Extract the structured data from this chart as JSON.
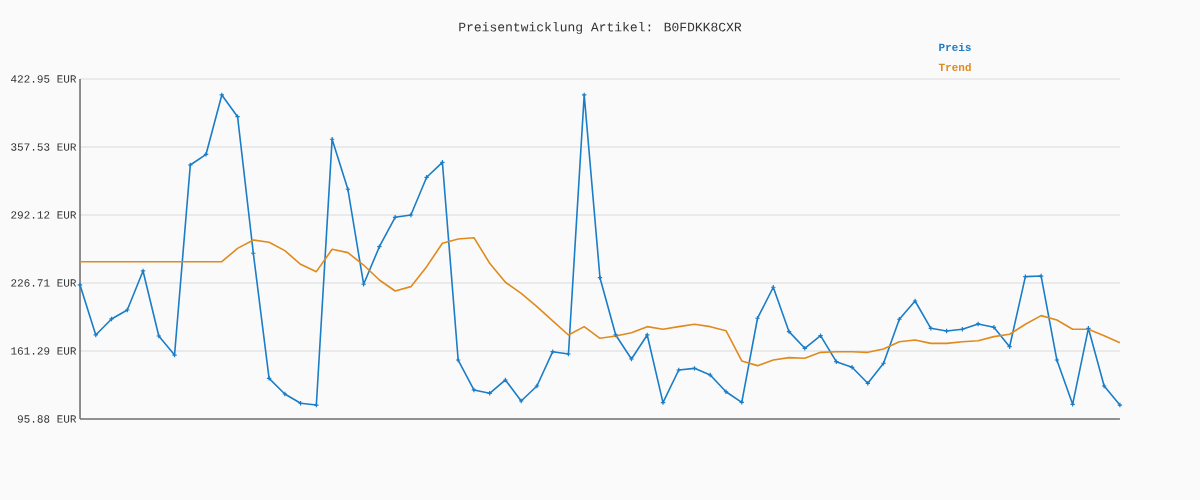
{
  "chart_data": {
    "type": "line",
    "title": "Preisentwicklung Artikel: B0FDKK8CXR",
    "categories": [
      null,
      null,
      null,
      null,
      null,
      null,
      null,
      null,
      null,
      null,
      null,
      null,
      null,
      null,
      null,
      null,
      null,
      null,
      null,
      null,
      null,
      null,
      null,
      null,
      null,
      null,
      null,
      null,
      null,
      null,
      null,
      null,
      null,
      null,
      null,
      null,
      null,
      null,
      null,
      null,
      null,
      null,
      null,
      null,
      null,
      null,
      null,
      null,
      null,
      null,
      null,
      null,
      null,
      null,
      null,
      null,
      null,
      null,
      null,
      null,
      null,
      null,
      null,
      null,
      null,
      null,
      null
    ],
    "series": [
      {
        "name": "Preis",
        "color": "#1a7dc8",
        "marker": "cross",
        "values": [
          224.8,
          176.7,
          192.1,
          200.7,
          238.3,
          175.7,
          157.4,
          340.2,
          350.5,
          407.6,
          386.7,
          255.3,
          135.0,
          119.9,
          111.0,
          109.3,
          365.0,
          316.9,
          225.5,
          261.6,
          289.9,
          292.1,
          328.4,
          342.8,
          152.6,
          123.8,
          120.6,
          133.4,
          113.2,
          127.6,
          160.6,
          158.4,
          407.6,
          231.8,
          176.7,
          153.6,
          176.7,
          111.6,
          143.0,
          144.6,
          138.2,
          122.1,
          111.9,
          192.8,
          222.6,
          179.9,
          163.9,
          176.0,
          151.0,
          145.6,
          130.2,
          149.5,
          191.8,
          209.4,
          183.1,
          180.5,
          182.2,
          187.3,
          184.1,
          165.4,
          232.8,
          233.4,
          152.6,
          110.0,
          183.1,
          127.6,
          109.3
        ]
      },
      {
        "name": "Trend",
        "color": "#e08a1e",
        "marker": "none",
        "values": [
          247.2,
          247.2,
          247.2,
          247.2,
          247.2,
          247.2,
          247.2,
          247.2,
          247.2,
          247.2,
          260.0,
          268.0,
          265.9,
          257.8,
          244.7,
          237.6,
          259.1,
          255.9,
          244.0,
          229.6,
          219.0,
          223.2,
          242.4,
          264.9,
          269.0,
          270.3,
          245.7,
          227.4,
          216.8,
          203.9,
          190.2,
          176.7,
          184.7,
          173.5,
          175.7,
          178.9,
          184.7,
          182.2,
          184.7,
          187.0,
          184.7,
          180.8,
          151.7,
          147.2,
          152.6,
          154.9,
          154.3,
          160.0,
          160.6,
          160.6,
          160.0,
          163.2,
          170.2,
          171.9,
          168.6,
          168.6,
          170.2,
          171.2,
          175.1,
          177.4,
          187.0,
          195.3,
          191.1,
          182.2,
          182.2,
          176.0,
          169.3
        ]
      }
    ],
    "ylim": [
      95.88,
      422.95
    ],
    "yticks": [
      {
        "value": 95.88,
        "label": "95.88 EUR"
      },
      {
        "value": 161.29,
        "label": "161.29 EUR"
      },
      {
        "value": 226.71,
        "label": "226.71 EUR"
      },
      {
        "value": 292.12,
        "label": "292.12 EUR"
      },
      {
        "value": 357.53,
        "label": "357.53 EUR"
      },
      {
        "value": 422.95,
        "label": "422.95 EUR"
      }
    ],
    "grid": "y",
    "legend": "top right",
    "line_style": "solid"
  }
}
